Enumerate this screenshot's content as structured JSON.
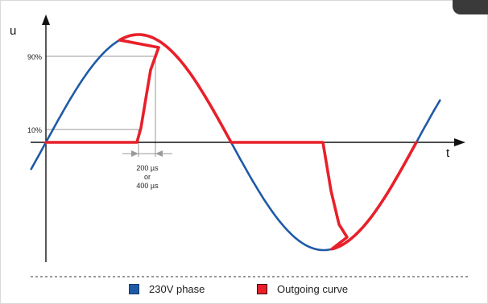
{
  "axes": {
    "y_label": "u",
    "x_label": "t"
  },
  "annotations": {
    "level_90": "90%",
    "level_10": "10%",
    "delay_line1": "200 µs",
    "delay_line2": "or",
    "delay_line3": "400 µs"
  },
  "legend": {
    "phase_label": "230V phase",
    "outgoing_label": "Outgoing curve"
  },
  "colors": {
    "phase": "#1f5aa6",
    "outgoing": "#e8202a",
    "guide": "#9a9a9a",
    "axis": "#111111"
  }
}
